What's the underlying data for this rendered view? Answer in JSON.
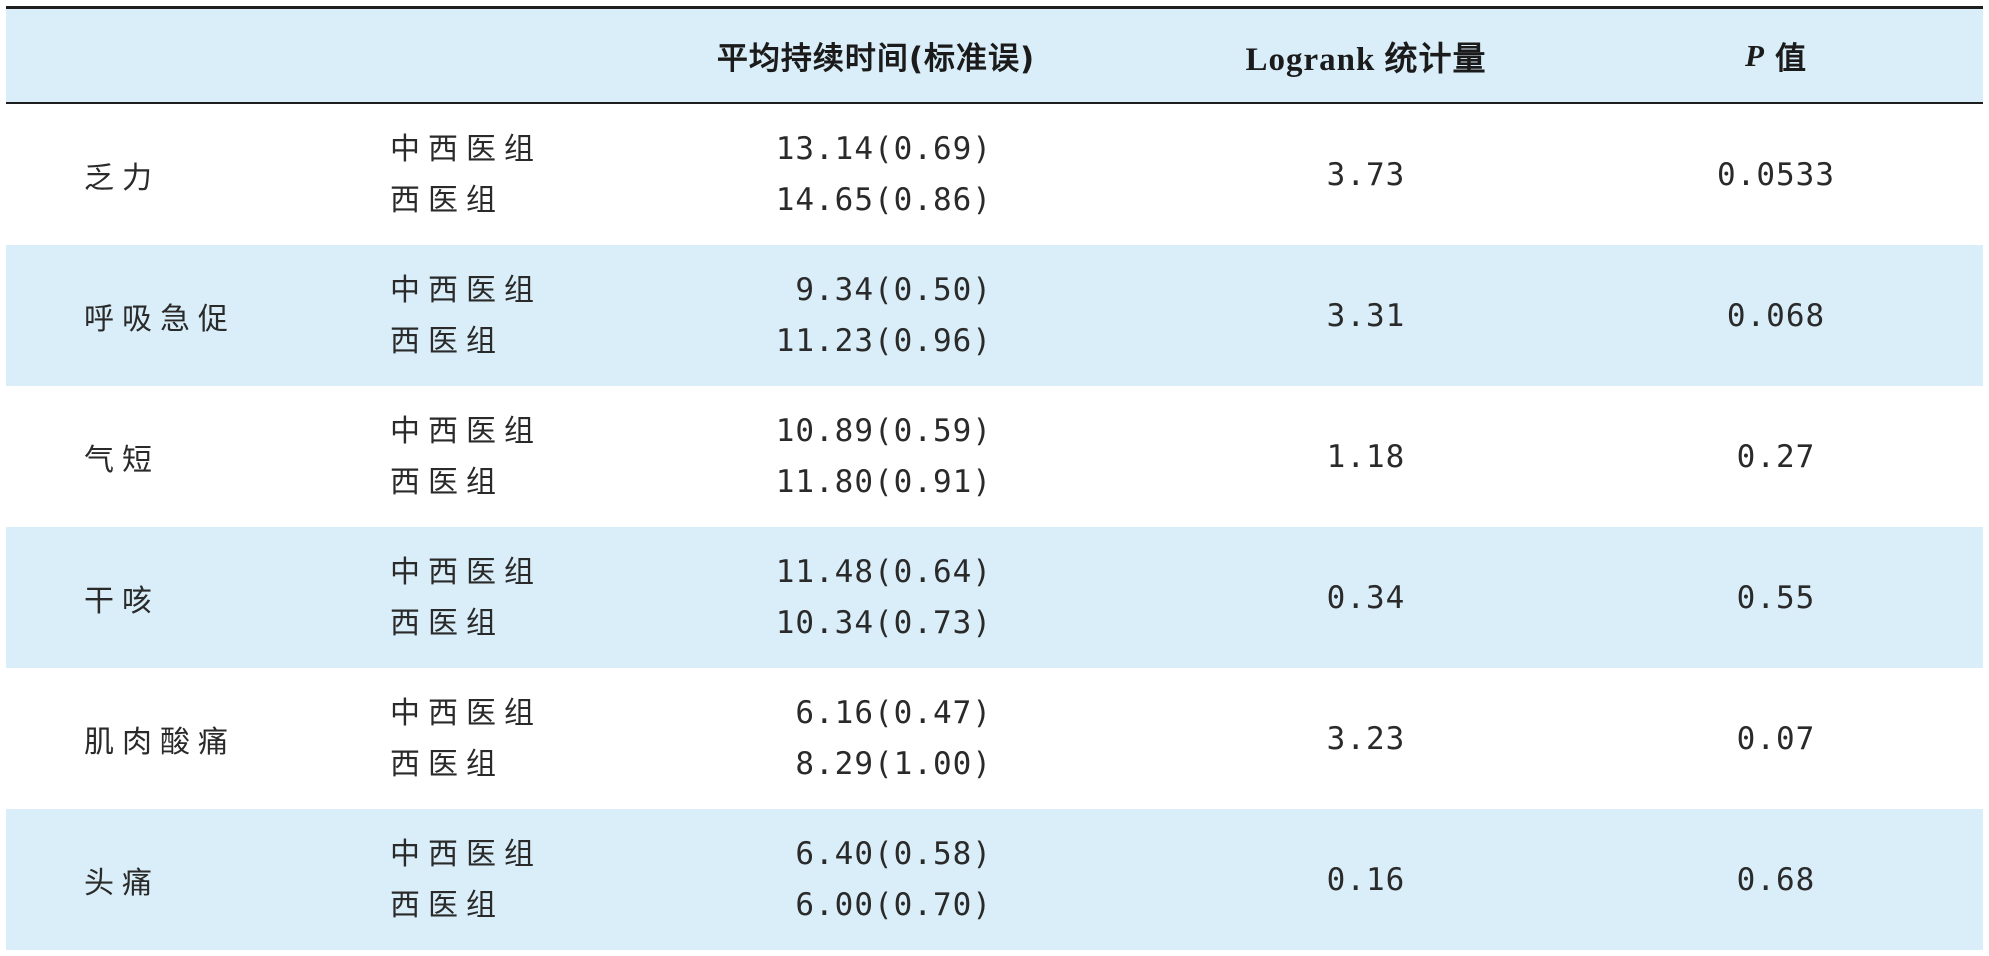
{
  "table": {
    "headers": {
      "mean": "平均持续时间(标准误)",
      "logrank": "Logrank 统计量",
      "p_symbol": "P",
      "p_suffix": "值"
    },
    "rows": [
      {
        "symptom": "乏力",
        "group_a": "中西医组",
        "group_b": "西医组",
        "mean_a": "13.14(0.69)",
        "mean_b": "14.65(0.86)",
        "logrank": "3.73",
        "p": "0.0533"
      },
      {
        "symptom": "呼吸急促",
        "group_a": "中西医组",
        "group_b": "西医组",
        "mean_a": "9.34(0.50)",
        "mean_b": "11.23(0.96)",
        "logrank": "3.31",
        "p": "0.068"
      },
      {
        "symptom": "气短",
        "group_a": "中西医组",
        "group_b": "西医组",
        "mean_a": "10.89(0.59)",
        "mean_b": "11.80(0.91)",
        "logrank": "1.18",
        "p": "0.27"
      },
      {
        "symptom": "干咳",
        "group_a": "中西医组",
        "group_b": "西医组",
        "mean_a": "11.48(0.64)",
        "mean_b": "10.34(0.73)",
        "logrank": "0.34",
        "p": "0.55"
      },
      {
        "symptom": "肌肉酸痛",
        "group_a": "中西医组",
        "group_b": "西医组",
        "mean_a": "6.16(0.47)",
        "mean_b": "8.29(1.00)",
        "logrank": "3.23",
        "p": "0.07"
      },
      {
        "symptom": "头痛",
        "group_a": "中西医组",
        "group_b": "西医组",
        "mean_a": "6.40(0.58)",
        "mean_b": "6.00(0.70)",
        "logrank": "0.16",
        "p": "0.68"
      }
    ]
  }
}
